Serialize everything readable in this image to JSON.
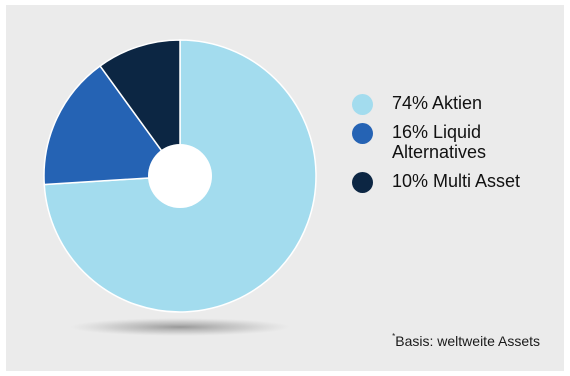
{
  "chart_data": {
    "type": "pie",
    "donut": true,
    "start_angle_deg": 0,
    "legend_position": "right",
    "series": [
      {
        "label": "74% Aktien",
        "value": 74,
        "color": "#a3dcee"
      },
      {
        "label": "16% Liquid Alternatives",
        "value": 16,
        "color": "#2563b4"
      },
      {
        "label": "10% Multi Asset",
        "value": 10,
        "color": "#0c2643"
      }
    ],
    "title": "",
    "footnote": {
      "marker": "*",
      "text": "Basis: weltweite Assets"
    }
  },
  "legend": {
    "items": [
      {
        "lines": [
          "74% Aktien"
        ],
        "color": "#a3dcee"
      },
      {
        "lines": [
          "16% Liquid",
          "Alternatives"
        ],
        "color": "#2563b4"
      },
      {
        "lines": [
          "10% Multi Asset"
        ],
        "color": "#0c2643"
      }
    ]
  }
}
